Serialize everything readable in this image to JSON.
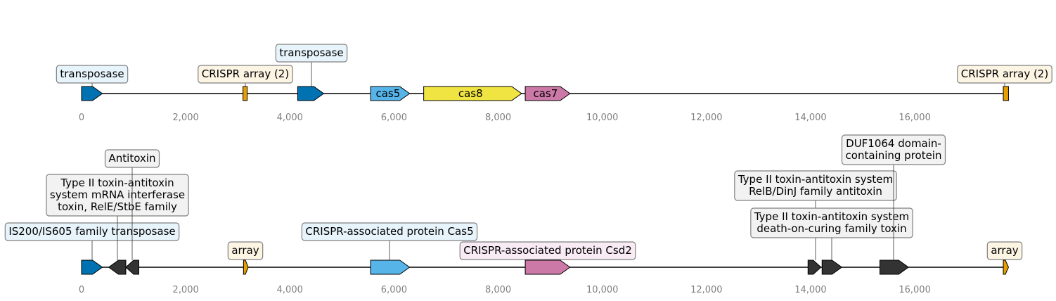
{
  "colors": {
    "transposase": "#0072b2",
    "crispr_array": "#e69f00",
    "cas5": "#56b4e9",
    "cas8": "#f0e442",
    "cas7": "#cc79a7",
    "other": "#333333",
    "axis_text": "#808080",
    "label_border": "#808080"
  },
  "tracks": [
    {
      "id": "track-top",
      "ticks": [
        "0",
        "2,000",
        "4,000",
        "6,000",
        "8,000",
        "10,000",
        "12,000",
        "14,000",
        "16,000"
      ],
      "genes": [
        {
          "name": "transposase",
          "start": 0,
          "end": 400,
          "strand": 1,
          "color": "#0072b2",
          "inner": ""
        },
        {
          "name": "CRISPR array (2)",
          "start": 3100,
          "end": 3180,
          "strand": 0,
          "color": "#e69f00",
          "inner": ""
        },
        {
          "name": "transposase",
          "start": 4150,
          "end": 4650,
          "strand": 1,
          "color": "#0072b2",
          "inner": ""
        },
        {
          "name": "cas5",
          "start": 5550,
          "end": 6300,
          "strand": 1,
          "color": "#56b4e9",
          "inner": "cas5"
        },
        {
          "name": "cas8",
          "start": 6570,
          "end": 8450,
          "strand": 1,
          "color": "#f0e442",
          "inner": "cas8"
        },
        {
          "name": "cas7",
          "start": 8520,
          "end": 9380,
          "strand": 1,
          "color": "#cc79a7",
          "inner": "cas7"
        },
        {
          "name": "CRISPR array (2)",
          "start": 17700,
          "end": 17800,
          "strand": 0,
          "color": "#e69f00",
          "inner": ""
        }
      ],
      "labels": [
        {
          "lines": [
            "transposase"
          ],
          "at": 200,
          "fill": "#e8f4fb"
        },
        {
          "lines": [
            "CRISPR array (2)"
          ],
          "at": 3140,
          "fill": "#fdf5e4"
        },
        {
          "lines": [
            "transposase"
          ],
          "at": 4400,
          "fill": "#e8f4fb"
        },
        {
          "lines": [
            "CRISPR array (2)"
          ],
          "at": 17750,
          "fill": "#fdf5e4"
        }
      ]
    },
    {
      "id": "track-bottom",
      "ticks": [
        "0",
        "2,000",
        "4,000",
        "6,000",
        "8,000",
        "10,000",
        "12,000",
        "14,000",
        "16,000"
      ],
      "genes": [
        {
          "name": "IS200/IS605 family transposase",
          "start": 0,
          "end": 400,
          "strand": 1,
          "color": "#0072b2",
          "inner": ""
        },
        {
          "name": "Type II toxin-antitoxin system mRNA interferase toxin, RelE/StbE family",
          "start": 520,
          "end": 850,
          "strand": -1,
          "color": "#333333",
          "inner": ""
        },
        {
          "name": "Antitoxin",
          "start": 850,
          "end": 1100,
          "strand": -1,
          "color": "#333333",
          "inner": ""
        },
        {
          "name": "array",
          "start": 3110,
          "end": 3200,
          "strand": 1,
          "color": "#e69f00",
          "inner": ""
        },
        {
          "name": "CRISPR-associated protein Cas5",
          "start": 5550,
          "end": 6300,
          "strand": 1,
          "color": "#56b4e9",
          "inner": ""
        },
        {
          "name": "CRISPR-associated protein Csd2",
          "start": 8520,
          "end": 9380,
          "strand": 1,
          "color": "#cc79a7",
          "inner": ""
        },
        {
          "name": "Type II toxin-antitoxin system RelB/DinJ family antitoxin",
          "start": 13950,
          "end": 14200,
          "strand": 1,
          "color": "#333333",
          "inner": ""
        },
        {
          "name": "Type II toxin-antitoxin system death-on-curing family toxin",
          "start": 14220,
          "end": 14600,
          "strand": 1,
          "color": "#333333",
          "inner": ""
        },
        {
          "name": "DUF1064 domain-containing protein",
          "start": 15330,
          "end": 15880,
          "strand": 1,
          "color": "#333333",
          "inner": ""
        },
        {
          "name": "array",
          "start": 17700,
          "end": 17800,
          "strand": 1,
          "color": "#e69f00",
          "inner": ""
        }
      ],
      "labels": [
        {
          "lines": [
            "IS200/IS605 family transposase"
          ],
          "at": 200,
          "fill": "#e8f4fb"
        },
        {
          "lines": [
            "Type II toxin-antitoxin",
            "system mRNA interferase",
            "toxin, RelE/StbE family"
          ],
          "at": 690,
          "fill": "#f2f2f2"
        },
        {
          "lines": [
            "Antitoxin"
          ],
          "at": 975,
          "fill": "#f2f2f2"
        },
        {
          "lines": [
            "array"
          ],
          "at": 3150,
          "fill": "#fdf5e4"
        },
        {
          "lines": [
            "CRISPR-associated protein Cas5"
          ],
          "at": 5925,
          "fill": "#e8f4fb"
        },
        {
          "lines": [
            "CRISPR-associated protein Csd2"
          ],
          "at": 8950,
          "fill": "#f8ebf3"
        },
        {
          "lines": [
            "Type II toxin-antitoxin system",
            "RelB/DinJ family antitoxin"
          ],
          "at": 14075,
          "fill": "#f2f2f2"
        },
        {
          "lines": [
            "Type II toxin-antitoxin system",
            "death-on-curing family toxin"
          ],
          "at": 14410,
          "fill": "#f2f2f2"
        },
        {
          "lines": [
            "DUF1064 domain-",
            "containing protein"
          ],
          "at": 15605,
          "fill": "#f2f2f2"
        },
        {
          "lines": [
            "array"
          ],
          "at": 17750,
          "fill": "#fdf5e4"
        }
      ]
    }
  ]
}
